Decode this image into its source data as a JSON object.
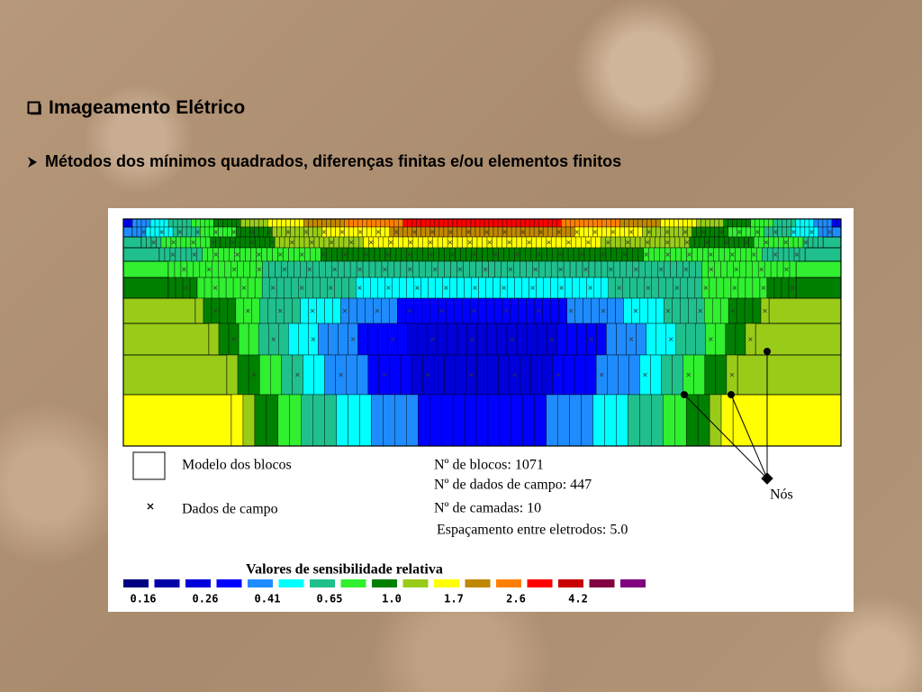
{
  "header": {
    "title": "Imageamento Elétrico"
  },
  "bullets": [
    "Métodos dos mínimos quadrados,  diferenças finitas e/ou elementos finitos"
  ],
  "figure": {
    "legend": {
      "block_model": "Modelo dos blocos",
      "field_data": "Dados de campo"
    },
    "stats": [
      "Nº de blocos: 1071",
      "Nº de dados de campo: 447",
      "Nº de camadas: 10",
      "Espaçamento entre eletrodos: 5.0"
    ],
    "nodes_label": "Nós",
    "scale": {
      "title": "Valores de sensibilidade relativa",
      "labels": [
        "0.16",
        "0.26",
        "0.41",
        "0.65",
        "1.0",
        "1.7",
        "2.6",
        "4.2"
      ],
      "colors": [
        "#000080",
        "#0000a8",
        "#0000d8",
        "#0000ff",
        "#1e8cff",
        "#00ffff",
        "#20c08c",
        "#30f030",
        "#008000",
        "#98cc18",
        "#ffff00",
        "#c08800",
        "#ff8000",
        "#ff0000",
        "#c80000",
        "#800040",
        "#800080"
      ]
    }
  }
}
